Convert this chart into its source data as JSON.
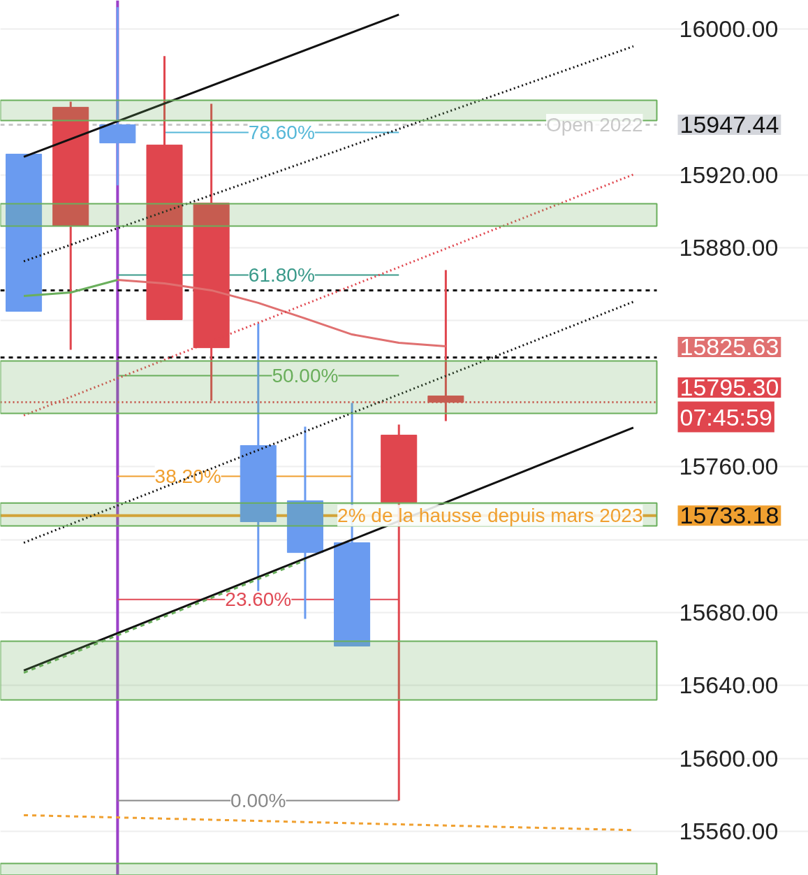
{
  "chart_data": {
    "type": "candlestick",
    "categories": [
      null,
      null,
      null,
      null,
      null,
      null,
      null,
      null,
      null,
      null,
      null,
      null,
      null,
      null
    ],
    "ohlc": [
      [
        15845.2,
        15931.4,
        15845.2,
        15931.4
      ],
      [
        15957.1,
        15960.1,
        15824.1,
        15891.9
      ],
      [
        15937.5,
        16012.0,
        15914.2,
        15947.5
      ],
      [
        15936.4,
        15985.1,
        15840.6,
        15840.6
      ],
      [
        15904.6,
        15959.0,
        15796.1,
        15825.2
      ],
      [
        15729.8,
        15838.6,
        15691.8,
        15771.6
      ],
      [
        15712.9,
        15781.9,
        15676.5,
        15741.3
      ],
      [
        15661.6,
        15795.0,
        15661.6,
        15718.3
      ],
      [
        15777.3,
        15783.1,
        15576.9,
        15740.5
      ],
      [
        15798.8,
        15867.8,
        15785.0,
        15795.3
      ],
      null,
      null,
      null,
      null
    ],
    "colors": [
      "#6a9bf0",
      "#e0464e",
      "#6a9bf0",
      "#e0464e",
      "#e0464e",
      "#6a9bf0",
      "#6a9bf0",
      "#6a9bf0",
      "#e0464e",
      "#e0464e",
      null,
      null,
      null,
      null
    ],
    "series": [
      {
        "type": "line",
        "color": "#6aaf5c",
        "line_style": "solid",
        "values": [
          15853.6,
          15855.5,
          15862.4,
          null,
          null,
          null,
          null,
          null,
          null,
          null,
          null,
          null,
          null,
          null
        ]
      },
      {
        "type": "line",
        "color": "#e07070",
        "line_style": "solid",
        "values": [
          null,
          null,
          15862.4,
          15860.5,
          15856.7,
          15849.8,
          15841.3,
          15832.5,
          15827.9,
          15826.0,
          null,
          null,
          null,
          null
        ]
      },
      {
        "type": "line",
        "color": "#111111",
        "line_style": "solid",
        "values": [
          15929.9,
          null,
          null,
          null,
          null,
          null,
          null,
          null,
          16007.9,
          null,
          null,
          null,
          null,
          null
        ]
      },
      {
        "type": "line",
        "color": "#111111",
        "line_style": "solid",
        "values": [
          15648.2,
          null,
          null,
          null,
          null,
          null,
          null,
          null,
          null,
          null,
          null,
          null,
          null,
          15781.4
        ]
      },
      {
        "type": "line",
        "color": "#111111",
        "line_style": "dotted",
        "values": [
          15872.6,
          null,
          null,
          null,
          null,
          null,
          null,
          null,
          null,
          null,
          null,
          null,
          null,
          15990.5
        ]
      },
      {
        "type": "line",
        "color": "#111111",
        "line_style": "dotted",
        "values": [
          15718.3,
          null,
          null,
          null,
          null,
          null,
          null,
          null,
          null,
          null,
          null,
          null,
          null,
          15850.4
        ]
      },
      {
        "type": "line",
        "color": "#e0464e",
        "line_style": "dotted",
        "values": [
          15788.1,
          null,
          null,
          null,
          null,
          null,
          null,
          null,
          null,
          null,
          null,
          null,
          null,
          15920.2
        ]
      },
      {
        "type": "line",
        "color": "#6aaf5c",
        "line_style": "dashed",
        "values": [
          15647.0,
          null,
          null,
          null,
          null,
          null,
          15708.6,
          null,
          null,
          null,
          null,
          null,
          null,
          null
        ]
      },
      {
        "type": "line",
        "color": "#f0a030",
        "line_style": "dashed",
        "values": [
          15568.9,
          null,
          null,
          null,
          null,
          null,
          null,
          null,
          null,
          null,
          null,
          null,
          null,
          15560.7
        ]
      },
      {
        "type": "line",
        "name": "78.60%",
        "color": "#56b8d8",
        "line_style": "solid",
        "values": [
          null,
          null,
          null,
          15943.3,
          null,
          null,
          null,
          null,
          15943.3,
          null,
          null,
          null,
          null,
          null
        ]
      },
      {
        "type": "line",
        "name": "61.80%",
        "color": "#3a9a8a",
        "line_style": "solid",
        "values": [
          null,
          null,
          15865.1,
          null,
          null,
          null,
          null,
          null,
          15865.1,
          null,
          null,
          null,
          null,
          null
        ]
      },
      {
        "type": "line",
        "name": "50.00%",
        "color": "#6aaf5c",
        "line_style": "solid",
        "values": [
          null,
          null,
          15809.9,
          null,
          null,
          null,
          null,
          null,
          15809.9,
          null,
          null,
          null,
          null,
          null
        ]
      },
      {
        "type": "line",
        "name": "38.20%",
        "color": "#f0a030",
        "line_style": "solid",
        "values": [
          null,
          null,
          15754.7,
          null,
          null,
          null,
          null,
          15754.7,
          null,
          null,
          null,
          null,
          null,
          null
        ]
      },
      {
        "type": "line",
        "name": "23.60%",
        "color": "#e04a55",
        "line_style": "solid",
        "values": [
          null,
          null,
          15687.2,
          null,
          null,
          null,
          null,
          null,
          15687.2,
          null,
          null,
          null,
          null,
          null
        ]
      },
      {
        "type": "line",
        "name": "0.00%",
        "color": "#888888",
        "line_style": "solid",
        "values": [
          null,
          null,
          15576.9,
          null,
          null,
          null,
          null,
          null,
          15576.9,
          null,
          null,
          null,
          null,
          null
        ]
      }
    ],
    "ref_lines": [
      {
        "axis": "y",
        "value": 15947.44,
        "label": "Open 2022",
        "color": "#c8c8c8",
        "line_style": "dashed"
      },
      {
        "axis": "y",
        "value": 15856.7,
        "color": "#111111",
        "line_style": "dashed"
      },
      {
        "axis": "y",
        "value": 15819.9,
        "color": "#111111",
        "line_style": "dashed"
      },
      {
        "axis": "y",
        "value": 15795.3,
        "color": "#e0464e",
        "line_style": "dotted"
      },
      {
        "axis": "y",
        "value": 15733.18,
        "label": "2% de la hausse depuis mars 2023",
        "color": "#f0a030",
        "line_style": "solid"
      }
    ],
    "bands": [
      {
        "axis": "y",
        "from": 15949.8,
        "to": 15960.9,
        "color": "#6aaf5c"
      },
      {
        "axis": "y",
        "from": 15891.9,
        "to": 15904.2,
        "color": "#6aaf5c"
      },
      {
        "axis": "y",
        "from": 15789.2,
        "to": 15818.0,
        "color": "#6aaf5c"
      },
      {
        "axis": "y",
        "from": 15727.5,
        "to": 15740.1,
        "color": "#6aaf5c"
      },
      {
        "axis": "y",
        "from": 15632.1,
        "to": 15664.3,
        "color": "#6aaf5c"
      },
      {
        "axis": "y",
        "from": 15536.0,
        "to": 15542.4,
        "color": "#6aaf5c"
      }
    ],
    "y2lim": [
      15535.9,
      16015.7
    ],
    "y2ticks": [
      {
        "value": 15947.44,
        "label": "15947.44"
      },
      {
        "value": 15825.63,
        "label": "15825.63"
      },
      {
        "value": 15795.3,
        "label": "15795.30\n07:45:59"
      },
      {
        "value": 15733.18,
        "label": "15733.18"
      }
    ],
    "ylim": [
      15535.9,
      16015.7
    ],
    "yticks": [
      {
        "value": 15560,
        "label": "15560.00"
      },
      {
        "value": 15600,
        "label": "15600.00"
      },
      {
        "value": 15640,
        "label": "15640.00"
      },
      {
        "value": 15680,
        "label": "15680.00"
      },
      {
        "value": 15720,
        "label": null
      },
      {
        "value": 15760,
        "label": "15760.00"
      },
      {
        "value": 15840,
        "label": null
      },
      {
        "value": 15880,
        "label": "15880.00"
      },
      {
        "value": 15920,
        "label": "15920.00"
      },
      {
        "value": 16000,
        "label": "16000.00"
      }
    ],
    "tick_labels": "y",
    "grid": "y",
    "marker": "none"
  }
}
